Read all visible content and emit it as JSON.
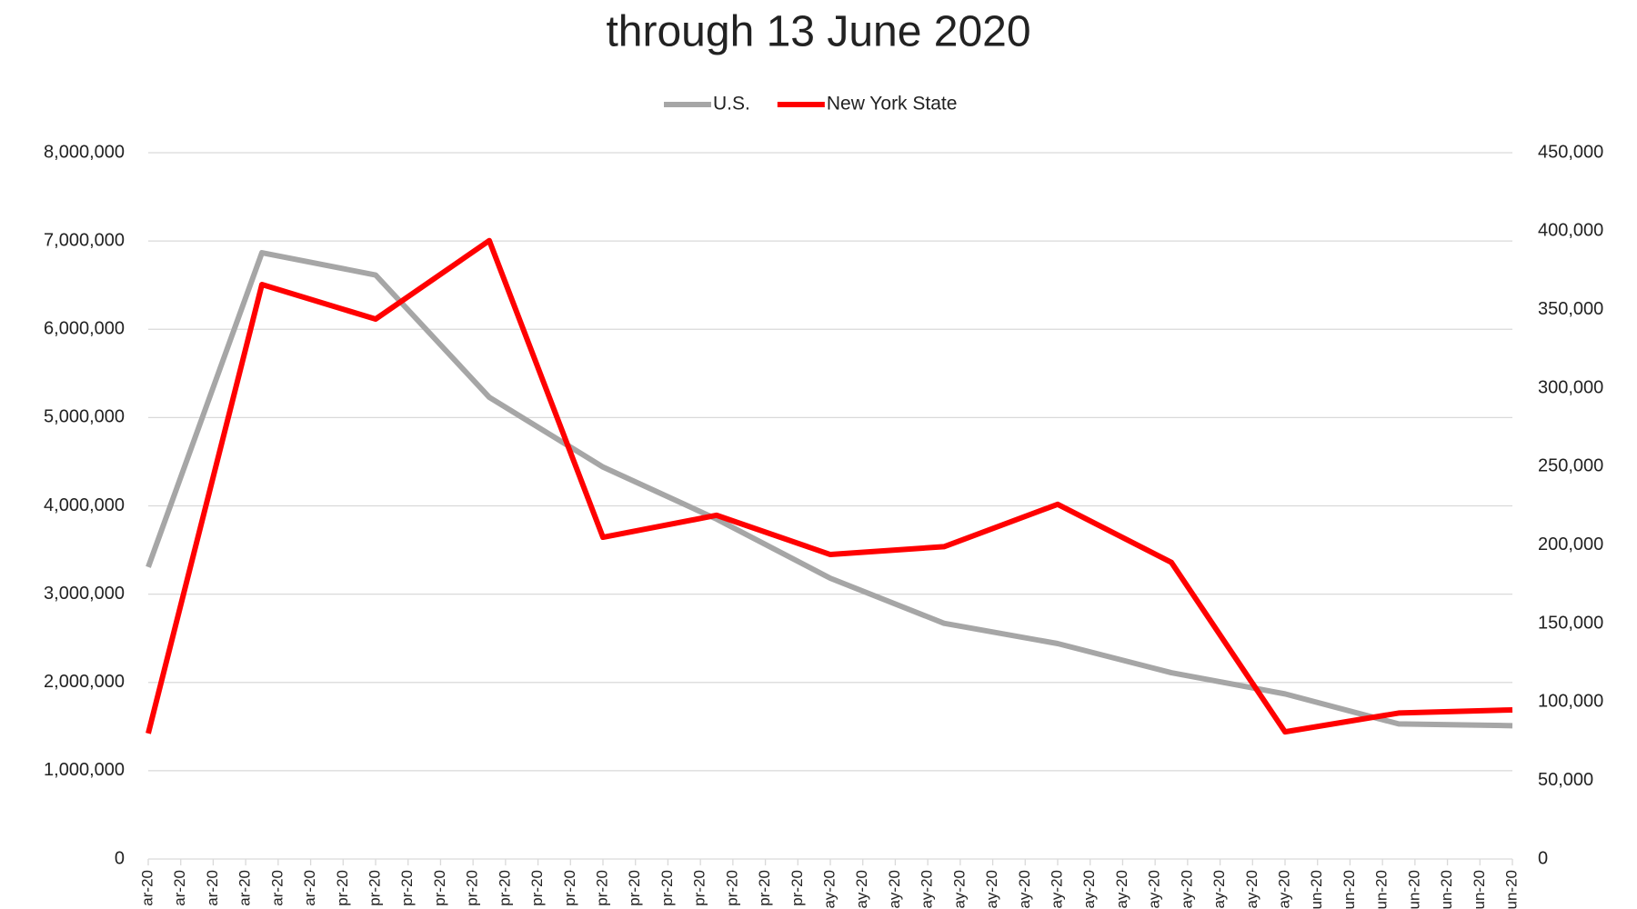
{
  "chart_data": {
    "type": "line",
    "title": "through 13 June 2020",
    "xlim": [
      0,
      42
    ],
    "xticks": [
      {
        "value": 0,
        "label": "ar-20"
      },
      {
        "value": 1,
        "label": "ar-20"
      },
      {
        "value": 2,
        "label": "ar-20"
      },
      {
        "value": 3,
        "label": "ar-20"
      },
      {
        "value": 4,
        "label": "ar-20"
      },
      {
        "value": 5,
        "label": "ar-20"
      },
      {
        "value": 6,
        "label": "pr-20"
      },
      {
        "value": 7,
        "label": "pr-20"
      },
      {
        "value": 8,
        "label": "pr-20"
      },
      {
        "value": 9,
        "label": "pr-20"
      },
      {
        "value": 10,
        "label": "pr-20"
      },
      {
        "value": 11,
        "label": "pr-20"
      },
      {
        "value": 12,
        "label": "pr-20"
      },
      {
        "value": 13,
        "label": "pr-20"
      },
      {
        "value": 14,
        "label": "pr-20"
      },
      {
        "value": 15,
        "label": "pr-20"
      },
      {
        "value": 16,
        "label": "pr-20"
      },
      {
        "value": 17,
        "label": "pr-20"
      },
      {
        "value": 18,
        "label": "pr-20"
      },
      {
        "value": 19,
        "label": "pr-20"
      },
      {
        "value": 20,
        "label": "pr-20"
      },
      {
        "value": 21,
        "label": "ay-20"
      },
      {
        "value": 22,
        "label": "ay-20"
      },
      {
        "value": 23,
        "label": "ay-20"
      },
      {
        "value": 24,
        "label": "ay-20"
      },
      {
        "value": 25,
        "label": "ay-20"
      },
      {
        "value": 26,
        "label": "ay-20"
      },
      {
        "value": 27,
        "label": "ay-20"
      },
      {
        "value": 28,
        "label": "ay-20"
      },
      {
        "value": 29,
        "label": "ay-20"
      },
      {
        "value": 30,
        "label": "ay-20"
      },
      {
        "value": 31,
        "label": "ay-20"
      },
      {
        "value": 32,
        "label": "ay-20"
      },
      {
        "value": 33,
        "label": "ay-20"
      },
      {
        "value": 34,
        "label": "ay-20"
      },
      {
        "value": 35,
        "label": "ay-20"
      },
      {
        "value": 36,
        "label": "un-20"
      },
      {
        "value": 37,
        "label": "un-20"
      },
      {
        "value": 38,
        "label": "un-20"
      },
      {
        "value": 39,
        "label": "un-20"
      },
      {
        "value": 40,
        "label": "un-20"
      },
      {
        "value": 41,
        "label": "un-20"
      },
      {
        "value": 42,
        "label": "un-20"
      }
    ],
    "x": [
      0,
      3.5,
      7,
      10.5,
      14,
      17.5,
      21,
      24.5,
      28,
      31.5,
      35,
      38.5,
      42
    ],
    "ylim": [
      0,
      8000000
    ],
    "yticks": [
      0,
      {
        "value": 1000000,
        "label": "1,000,000"
      },
      {
        "value": 2000000,
        "label": "2,000,000"
      },
      {
        "value": 3000000,
        "label": "3,000,000"
      },
      {
        "value": 4000000,
        "label": "4,000,000"
      },
      {
        "value": 5000000,
        "label": "5,000,000"
      },
      {
        "value": 6000000,
        "label": "6,000,000"
      },
      {
        "value": 7000000,
        "label": "7,000,000"
      },
      {
        "value": 8000000,
        "label": "8,000,000"
      }
    ],
    "y2lim": [
      0,
      450000
    ],
    "y2ticks": [
      0,
      {
        "value": 50000,
        "label": "50,000"
      },
      {
        "value": 100000,
        "label": "100,000"
      },
      {
        "value": 150000,
        "label": "150,000"
      },
      {
        "value": 200000,
        "label": "200,000"
      },
      {
        "value": 250000,
        "label": "250,000"
      },
      {
        "value": 300000,
        "label": "300,000"
      },
      {
        "value": 350000,
        "label": "350,000"
      },
      {
        "value": 400000,
        "label": "400,000"
      },
      {
        "value": 450000,
        "label": "450,000"
      }
    ],
    "grid": true,
    "legend": "top",
    "series": [
      {
        "name": "U.S.",
        "color": "#a6a6a6",
        "values": [
          3307000,
          6867000,
          6615000,
          5230000,
          4440000,
          3850000,
          3180000,
          2670000,
          2440000,
          2110000,
          1870000,
          1530000,
          1510000
        ]
      },
      {
        "name": "New York State",
        "color": "#ff0000",
        "axis": "y2",
        "values": [
          80000,
          366000,
          344000,
          394000,
          205000,
          219000,
          194000,
          199000,
          226000,
          189000,
          81000,
          93000,
          95000
        ]
      }
    ]
  }
}
